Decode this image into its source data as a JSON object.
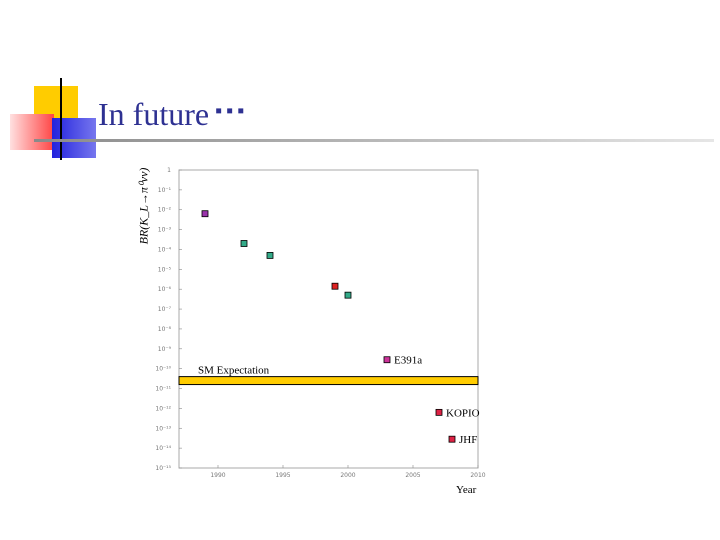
{
  "slide": {
    "title": "In future",
    "title_dots": "▪▪▪"
  },
  "colors": {
    "title": "#2e3192",
    "band": "#ffcc00",
    "marker_purple": "#9933aa",
    "marker_teal": "#33aa88",
    "marker_red": "#dd2222",
    "marker_magenta": "#cc3399",
    "marker_crimson": "#dd2244"
  },
  "chart_data": {
    "type": "scatter",
    "ylabel": "BR(K_L→π⁰νν)",
    "xlabel": "Year",
    "xlim": [
      1987,
      2010
    ],
    "ylim_exp": [
      -15,
      0
    ],
    "y_scale": "log",
    "x_ticks": [
      "1990",
      "1995",
      "2000",
      "2005",
      "2010"
    ],
    "y_ticks": [
      "1",
      "10⁻¹",
      "10⁻²",
      "10⁻³",
      "10⁻⁴",
      "10⁻⁵",
      "10⁻⁶",
      "10⁻⁷",
      "10⁻⁸",
      "10⁻⁹",
      "10⁻¹⁰",
      "10⁻¹¹",
      "10⁻¹²",
      "10⁻¹³",
      "10⁻¹⁴",
      "10⁻¹⁵"
    ],
    "points": [
      {
        "x": 1989,
        "y_exp": -2.2,
        "color": "#9933aa",
        "label": ""
      },
      {
        "x": 1992,
        "y_exp": -3.7,
        "color": "#33aa88",
        "label": ""
      },
      {
        "x": 1994,
        "y_exp": -4.3,
        "color": "#33aa88",
        "label": ""
      },
      {
        "x": 1999,
        "y_exp": -5.85,
        "color": "#dd2222",
        "label": ""
      },
      {
        "x": 2000,
        "y_exp": -6.3,
        "color": "#33aa88",
        "label": ""
      },
      {
        "x": 2003,
        "y_exp": -9.55,
        "color": "#cc3399",
        "label": "E391a"
      },
      {
        "x": 2007,
        "y_exp": -12.2,
        "color": "#dd2244",
        "label": "KOPIO"
      },
      {
        "x": 2008,
        "y_exp": -13.55,
        "color": "#dd2244",
        "label": "JHF"
      }
    ],
    "band": {
      "label": "SM Expectation",
      "y_exp_top": -10.4,
      "y_exp_bottom": -10.8
    }
  }
}
